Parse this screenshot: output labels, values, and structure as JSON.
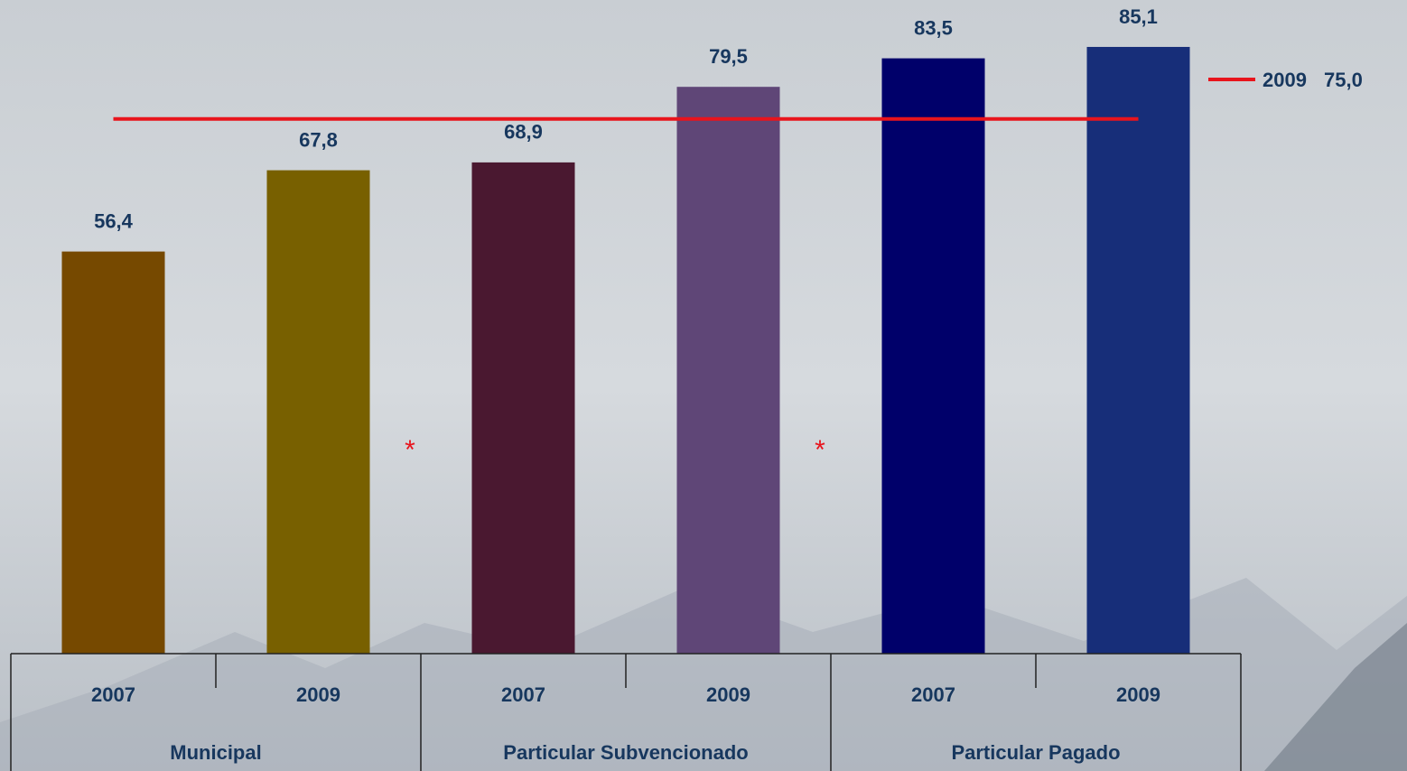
{
  "chart_data": {
    "type": "bar",
    "groups": [
      {
        "name": "Municipal",
        "categories": [
          "2007",
          "2009"
        ],
        "values": [
          56.4,
          67.8
        ],
        "value_labels": [
          "56,4",
          "67,8"
        ],
        "colors": [
          "#764900",
          "#786000"
        ],
        "annotation": "*"
      },
      {
        "name": "Particular Subvencionado",
        "categories": [
          "2007",
          "2009"
        ],
        "values": [
          68.9,
          79.5
        ],
        "value_labels": [
          "68,9",
          "79,5"
        ],
        "colors": [
          "#4a1830",
          "#5f4677"
        ],
        "annotation": "*"
      },
      {
        "name": "Particular Pagado",
        "categories": [
          "2007",
          "2009"
        ],
        "values": [
          83.5,
          85.1
        ],
        "value_labels": [
          "83,5",
          "85,1"
        ],
        "colors": [
          "#00006a",
          "#172e79"
        ]
      }
    ],
    "reference_line": {
      "name": "2009",
      "value": 75,
      "value_label": "75,0",
      "color": "#e8141c"
    },
    "ylim": [
      0,
      90
    ]
  }
}
